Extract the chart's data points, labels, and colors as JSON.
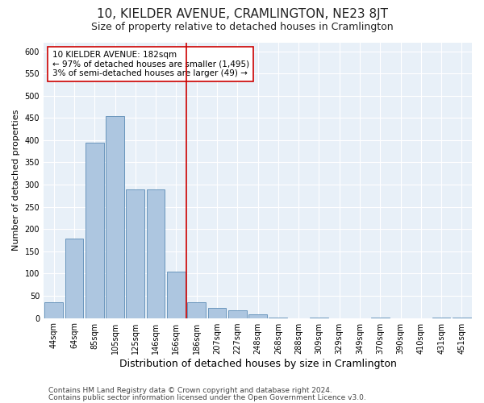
{
  "title": "10, KIELDER AVENUE, CRAMLINGTON, NE23 8JT",
  "subtitle": "Size of property relative to detached houses in Cramlington",
  "xlabel": "Distribution of detached houses by size in Cramlington",
  "ylabel": "Number of detached properties",
  "categories": [
    "44sqm",
    "64sqm",
    "85sqm",
    "105sqm",
    "125sqm",
    "146sqm",
    "166sqm",
    "186sqm",
    "207sqm",
    "227sqm",
    "248sqm",
    "268sqm",
    "288sqm",
    "309sqm",
    "329sqm",
    "349sqm",
    "370sqm",
    "390sqm",
    "410sqm",
    "431sqm",
    "451sqm"
  ],
  "values": [
    35,
    178,
    395,
    455,
    290,
    290,
    105,
    35,
    22,
    18,
    8,
    1,
    0,
    1,
    0,
    0,
    1,
    0,
    0,
    1,
    1
  ],
  "bar_color": "#adc6e0",
  "bar_edgecolor": "#5a8ab5",
  "vline_x_index": 7,
  "vline_color": "#cc0000",
  "annotation_text": "10 KIELDER AVENUE: 182sqm\n← 97% of detached houses are smaller (1,495)\n3% of semi-detached houses are larger (49) →",
  "annotation_box_edgecolor": "#cc0000",
  "annotation_box_facecolor": "#ffffff",
  "footer_line1": "Contains HM Land Registry data © Crown copyright and database right 2024.",
  "footer_line2": "Contains public sector information licensed under the Open Government Licence v3.0.",
  "plot_background_color": "#e8f0f8",
  "ylim": [
    0,
    620
  ],
  "yticks": [
    0,
    50,
    100,
    150,
    200,
    250,
    300,
    350,
    400,
    450,
    500,
    550,
    600
  ],
  "title_fontsize": 11,
  "subtitle_fontsize": 9,
  "xlabel_fontsize": 9,
  "ylabel_fontsize": 8,
  "tick_fontsize": 7,
  "annotation_fontsize": 7.5,
  "footer_fontsize": 6.5
}
